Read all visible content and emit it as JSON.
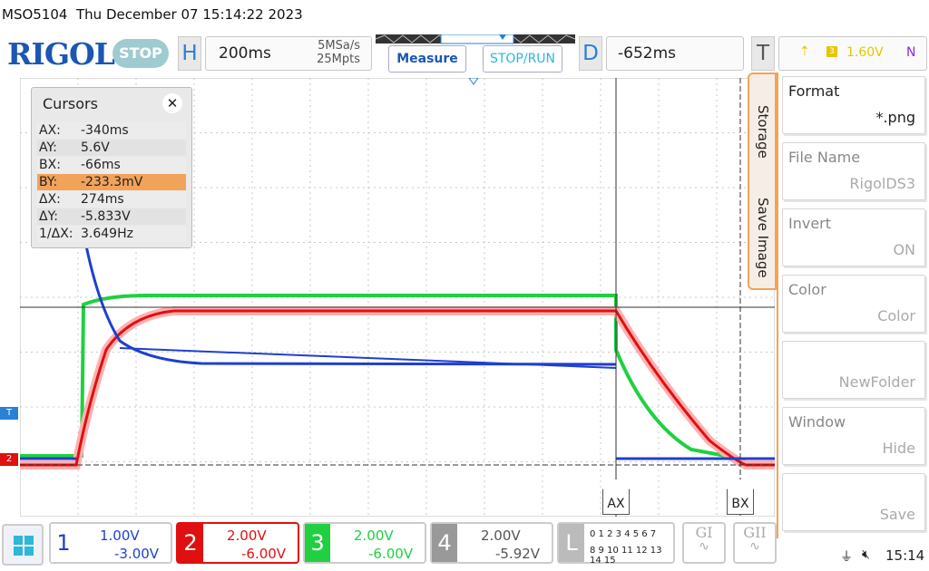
{
  "status_bar": {
    "model": "MSO5104",
    "datetime": "Thu December 07 15:14:22 2023"
  },
  "brand": "RIGOL",
  "run_state": "STOP",
  "horizontal": {
    "letter": "H",
    "timebase": "200ms",
    "sample_rate": "5MSa/s",
    "memory_depth": "25Mpts"
  },
  "buttons": {
    "measure": "Measure",
    "stop_run": "STOP/RUN"
  },
  "delay": {
    "letter": "D",
    "value": "-652ms"
  },
  "trigger": {
    "letter": "T",
    "level": "1.60V",
    "coupling": "N"
  },
  "cursors": {
    "title": "Cursors",
    "rows": [
      {
        "label": "AX:",
        "value": "-340ms"
      },
      {
        "label": "AY:",
        "value": "5.6V"
      },
      {
        "label": "BX:",
        "value": "-66ms"
      },
      {
        "label": "BY:",
        "value": "-233.3mV"
      },
      {
        "label": "ΔX:",
        "value": "274ms"
      },
      {
        "label": "ΔY:",
        "value": "-5.833V"
      },
      {
        "label": "1/ΔX:",
        "value": "3.649Hz"
      }
    ],
    "highlight_color": "#f2a35a"
  },
  "markers": {
    "trigger_marker": "T",
    "channel2_marker": "2",
    "cursor_a": "AX",
    "cursor_b": "BX"
  },
  "side_menu": {
    "tabs": [
      "Storage",
      "Save Image"
    ],
    "items": [
      {
        "title": "Format",
        "value": "*.png"
      },
      {
        "title": "File Name",
        "value": "RigolDS3"
      },
      {
        "title": "Invert",
        "value": "ON"
      },
      {
        "title": "Color",
        "value": "Color"
      },
      {
        "title": "",
        "value": "NewFolder"
      },
      {
        "title": "Window",
        "value": "Hide"
      },
      {
        "title": "",
        "value": "Save"
      }
    ]
  },
  "channels": [
    {
      "num": "1",
      "scale": "1.00V",
      "offset": "-3.00V",
      "color": "#1f3fd0"
    },
    {
      "num": "2",
      "scale": "2.00V",
      "offset": "-6.00V",
      "color": "#e01010"
    },
    {
      "num": "3",
      "scale": "2.00V",
      "offset": "-6.00V",
      "color": "#20d040"
    },
    {
      "num": "4",
      "scale": "2.00V",
      "offset": "-5.92V",
      "color": "#999999"
    }
  ],
  "logic": {
    "letter": "L",
    "row1": "0 1 2 3  4 5 6 7",
    "row2": "8 9 10 11 12 13 14 15"
  },
  "generators": [
    "GI",
    "GII"
  ],
  "clock": "15:14"
}
